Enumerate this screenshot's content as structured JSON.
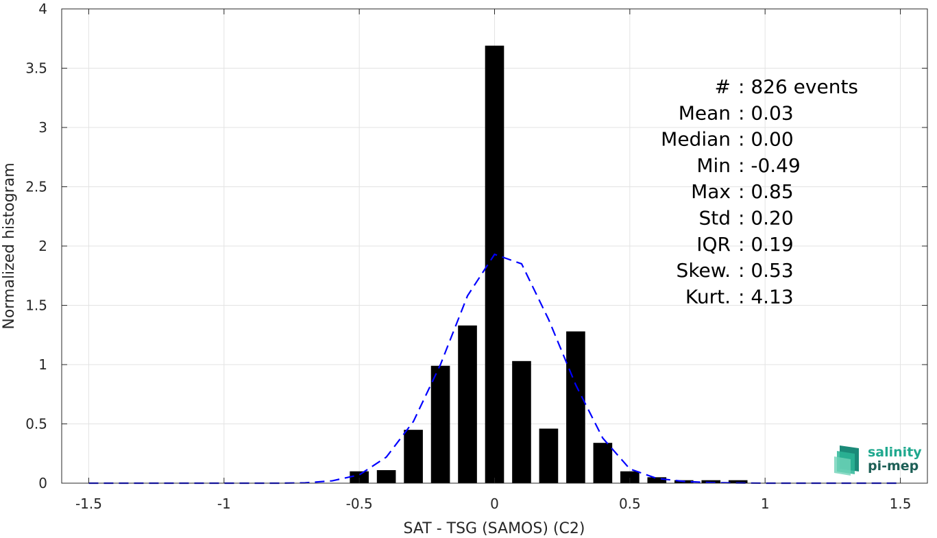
{
  "chart_data": {
    "type": "bar",
    "xlabel": "SAT - TSG (SAMOS) (C2)",
    "ylabel": "Normalized histogram",
    "xlim": [
      -1.6,
      1.6
    ],
    "ylim": [
      0,
      4
    ],
    "x_ticks": [
      "-1.5",
      "-1",
      "-0.5",
      "0",
      "0.5",
      "1",
      "1.5"
    ],
    "x_tick_values": [
      -1.5,
      -1,
      -0.5,
      0,
      0.5,
      1,
      1.5
    ],
    "y_ticks": [
      "0",
      "0.5",
      "1",
      "1.5",
      "2",
      "2.5",
      "3",
      "3.5",
      "4"
    ],
    "y_tick_values": [
      0,
      0.5,
      1,
      1.5,
      2,
      2.5,
      3,
      3.5,
      4
    ],
    "grid": true,
    "bar_width": 0.07,
    "bars": {
      "x": [
        -0.5,
        -0.4,
        -0.3,
        -0.2,
        -0.1,
        0.0,
        0.1,
        0.2,
        0.3,
        0.4,
        0.5,
        0.6,
        0.7,
        0.8,
        0.9
      ],
      "values": [
        0.1,
        0.11,
        0.45,
        0.99,
        1.33,
        3.69,
        1.03,
        0.46,
        1.28,
        0.34,
        0.1,
        0.05,
        0.025,
        0.025,
        0.025
      ],
      "color": "#000000"
    },
    "fit_curve": {
      "style": "dashed",
      "color": "#0000ff",
      "x": [
        -1.5,
        -1.4,
        -1.3,
        -1.2,
        -1.1,
        -1.0,
        -0.9,
        -0.8,
        -0.7,
        -0.6,
        -0.5,
        -0.4,
        -0.3,
        -0.2,
        -0.1,
        0.0,
        0.1,
        0.2,
        0.3,
        0.4,
        0.5,
        0.6,
        0.7,
        0.8,
        0.9,
        1.0,
        1.1,
        1.2,
        1.3,
        1.4,
        1.5
      ],
      "y": [
        0,
        0,
        0,
        0,
        0,
        0,
        0,
        0,
        0.003,
        0.02,
        0.07,
        0.22,
        0.52,
        1.0,
        1.58,
        1.93,
        1.85,
        1.38,
        0.83,
        0.38,
        0.12,
        0.04,
        0.015,
        0.005,
        0.002,
        0,
        0,
        0,
        0,
        0,
        0
      ]
    },
    "stats": [
      {
        "key": "#  ",
        "value": ": 826 events"
      },
      {
        "key": "Mean",
        "value": ": 0.03"
      },
      {
        "key": "Median",
        "value": ": 0.00"
      },
      {
        "key": "Min",
        "value": ": -0.49"
      },
      {
        "key": "Max",
        "value": ": 0.85"
      },
      {
        "key": "Std",
        "value": ": 0.20"
      },
      {
        "key": "IQR",
        "value": ": 0.19"
      },
      {
        "key": "Skew.",
        "value": ": 0.53"
      },
      {
        "key": "Kurt.",
        "value": ": 4.13"
      }
    ]
  },
  "logo": {
    "line1": "salinity",
    "line2": "pi-mep",
    "color1": "#1fa88e",
    "color2": "#1d5f56"
  }
}
